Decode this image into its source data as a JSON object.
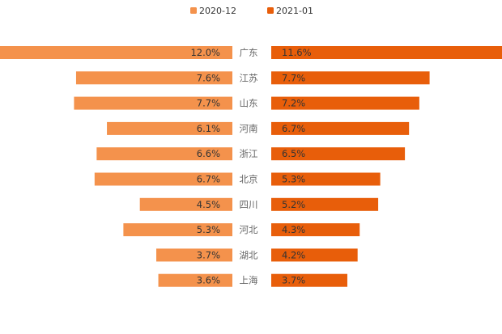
{
  "chart_data": {
    "type": "bar",
    "orientation": "horizontal-butterfly",
    "categories": [
      "广东",
      "江苏",
      "山东",
      "河南",
      "浙江",
      "北京",
      "四川",
      "河北",
      "湖北",
      "上海"
    ],
    "series": [
      {
        "name": "2020-12",
        "color": "#f4924c",
        "side": "left",
        "values": [
          12.0,
          7.6,
          7.7,
          6.1,
          6.6,
          6.7,
          4.5,
          5.3,
          3.7,
          3.6
        ],
        "labels": [
          "12.0%",
          "7.6%",
          "7.7%",
          "6.1%",
          "6.6%",
          "6.7%",
          "4.5%",
          "5.3%",
          "3.7%",
          "3.6%"
        ]
      },
      {
        "name": "2021-01",
        "color": "#e85e0a",
        "side": "right",
        "values": [
          11.6,
          7.7,
          7.2,
          6.7,
          6.5,
          5.3,
          5.2,
          4.3,
          4.2,
          3.7
        ],
        "labels": [
          "11.6%",
          "7.7%",
          "7.2%",
          "6.7%",
          "6.5%",
          "5.3%",
          "5.2%",
          "4.3%",
          "4.2%",
          "3.7%"
        ]
      }
    ],
    "unit": "%",
    "legend_position": "top-center",
    "grid": false
  }
}
